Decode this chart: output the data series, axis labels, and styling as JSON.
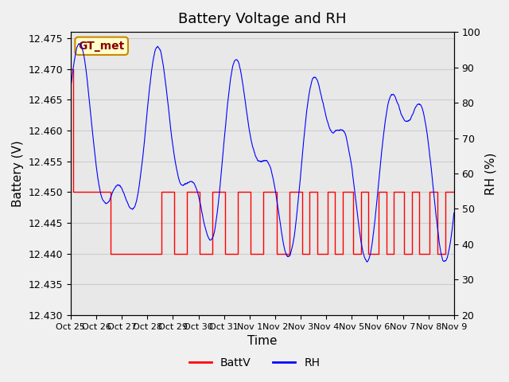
{
  "title": "Battery Voltage and RH",
  "xlabel": "Time",
  "ylabel_left": "Battery (V)",
  "ylabel_right": "RH (%)",
  "annotation_text": "GT_met",
  "ylim_left": [
    12.43,
    12.476
  ],
  "ylim_right": [
    20,
    100
  ],
  "yticks_left": [
    12.43,
    12.435,
    12.44,
    12.445,
    12.45,
    12.455,
    12.46,
    12.465,
    12.47,
    12.475
  ],
  "yticks_right": [
    20,
    30,
    40,
    50,
    60,
    70,
    80,
    90,
    100
  ],
  "xtick_labels": [
    "Oct 25",
    "Oct 26",
    "Oct 27",
    "Oct 28",
    "Oct 29",
    "Oct 30",
    "Oct 31",
    "Nov 1",
    "Nov 2",
    "Nov 3",
    "Nov 4",
    "Nov 5",
    "Nov 6",
    "Nov 7",
    "Nov 8",
    "Nov 9"
  ],
  "grid_color": "#cccccc",
  "bg_color": "#e8e8e8",
  "plot_bg_color": "#e8e8e8",
  "batt_color": "#ff0000",
  "rh_color": "#0000ff",
  "legend_labels": [
    "BattV",
    "RH"
  ],
  "title_fontsize": 13,
  "axis_label_fontsize": 11,
  "tick_fontsize": 9,
  "legend_fontsize": 10
}
